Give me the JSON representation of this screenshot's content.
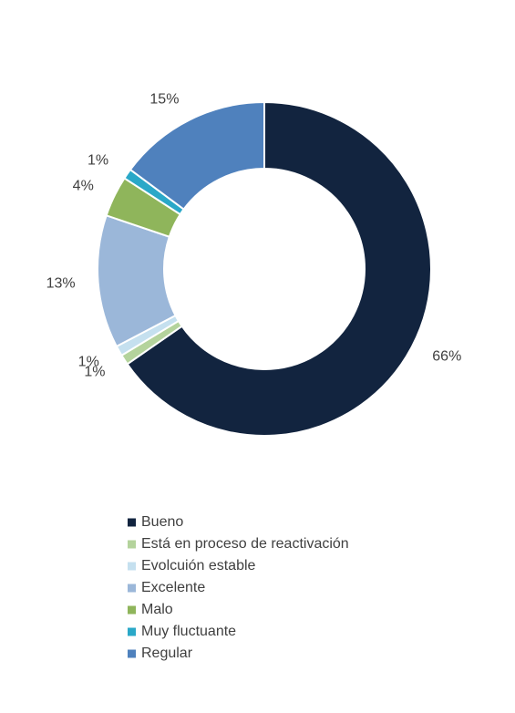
{
  "chart_data": {
    "type": "donut",
    "categories": [
      "Bueno",
      "Está en proceso de reactivación",
      "Evolcuión estable",
      "Excelente",
      "Malo",
      "Muy fluctuante",
      "Regular"
    ],
    "values": [
      66,
      1,
      1,
      13,
      4,
      1,
      15
    ],
    "value_labels": [
      "66%",
      "1%",
      "1%",
      "13%",
      "4%",
      "1%",
      "15%"
    ],
    "colors": [
      "#12243f",
      "#b4d39c",
      "#c5e0ef",
      "#9bb7d9",
      "#8fb55b",
      "#2aa8c8",
      "#4f81bd"
    ],
    "legend": "bottom"
  }
}
